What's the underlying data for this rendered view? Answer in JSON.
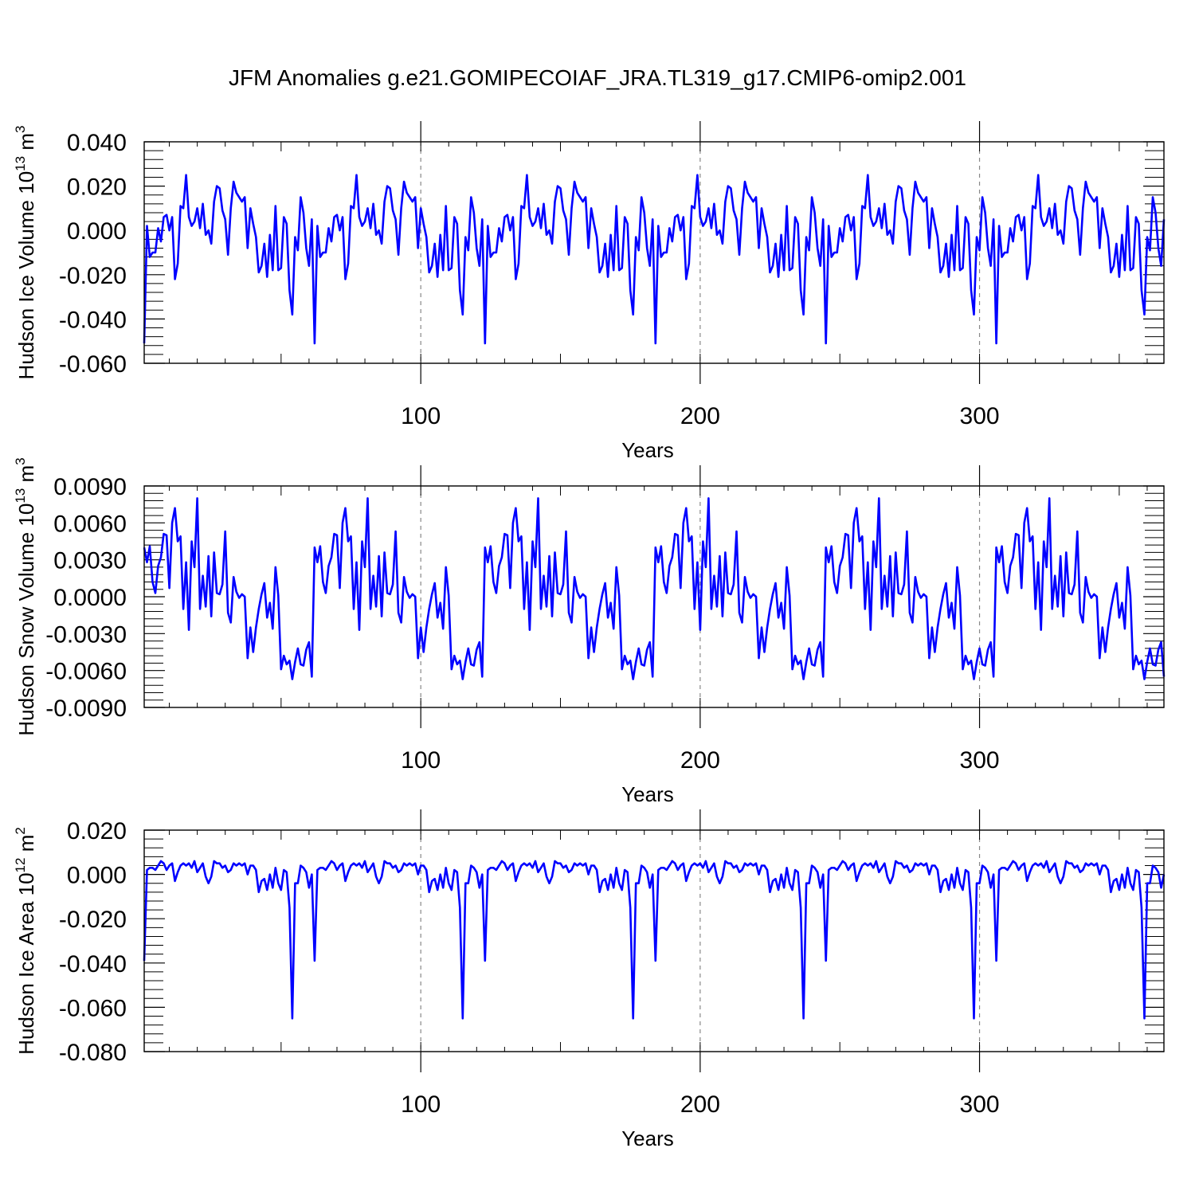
{
  "figure": {
    "title": "JFM Anomalies g.e21.GOMIPECOIAF_JRA.TL319_g17.CMIP6-omip2.001",
    "line_color": "#0000ff",
    "grid_color": "#888888",
    "axis_color": "#000000"
  },
  "chart_data": [
    {
      "type": "line",
      "title": "",
      "xlabel": "Years",
      "ylabel": "Hudson Ice Volume 10",
      "ylabel_exp": "13",
      "ylabel_unit": " m",
      "ylabel_unit_exp": "3",
      "xlim": [
        1,
        366
      ],
      "ylim": [
        -0.06,
        0.04
      ],
      "x_ticks": [
        100,
        200,
        300
      ],
      "x_tick_labels": [
        "100",
        "200",
        "300"
      ],
      "y_ticks": [
        -0.06,
        -0.04,
        -0.02,
        0.0,
        0.02,
        0.04
      ],
      "y_tick_labels": [
        "-0.060",
        "-0.040",
        "-0.020",
        "0.000",
        "0.020",
        "0.040"
      ],
      "grid": "vertical dashed at 100, 200, 300",
      "series": [
        {
          "period_start_x": 1,
          "period_length": 61,
          "last_x": 366,
          "values": [
            -0.051,
            0.002,
            -0.012,
            -0.01,
            -0.01,
            0.001,
            -0.005,
            0.006,
            0.007,
            0.0,
            0.006,
            -0.022,
            -0.015,
            0.011,
            0.01,
            0.025,
            0.006,
            0.002,
            0.004,
            0.01,
            0.001,
            0.012,
            -0.002,
            0.0,
            -0.006,
            0.013,
            0.02,
            0.019,
            0.009,
            0.005,
            -0.011,
            0.01,
            0.022,
            0.017,
            0.015,
            0.013,
            0.015,
            -0.008,
            0.01,
            0.003,
            -0.003,
            -0.019,
            -0.016,
            -0.006,
            -0.021,
            -0.002,
            -0.018,
            0.011,
            -0.018,
            -0.017,
            0.006,
            0.003,
            -0.027,
            -0.038,
            -0.003,
            -0.009,
            0.015,
            0.008,
            -0.008,
            -0.016,
            0.005
          ]
        }
      ]
    },
    {
      "type": "line",
      "title": "",
      "xlabel": "Years",
      "ylabel": "Hudson Snow Volume 10",
      "ylabel_exp": "13",
      "ylabel_unit": " m",
      "ylabel_unit_exp": "3",
      "xlim": [
        1,
        366
      ],
      "ylim": [
        -0.009,
        0.009
      ],
      "x_ticks": [
        100,
        200,
        300
      ],
      "x_tick_labels": [
        "100",
        "200",
        "300"
      ],
      "y_ticks": [
        -0.009,
        -0.006,
        -0.003,
        0.0,
        0.003,
        0.006,
        0.009
      ],
      "y_tick_labels": [
        "-0.0090",
        "-0.0060",
        "-0.0030",
        "0.0000",
        "0.0030",
        "0.0060",
        "0.0090"
      ],
      "grid": "vertical dashed at 100, 200, 300",
      "series": [
        {
          "period_start_x": 1,
          "period_length": 61,
          "last_x": 366,
          "values": [
            0.004,
            0.0028,
            0.0041,
            0.0012,
            0.0003,
            0.0025,
            0.0032,
            0.0051,
            0.005,
            0.0007,
            0.006,
            0.0072,
            0.0045,
            0.0049,
            -0.001,
            0.0028,
            -0.0027,
            0.0045,
            0.0024,
            0.008,
            -0.001,
            0.0017,
            -0.0008,
            0.0033,
            -0.0016,
            0.0036,
            0.0003,
            0.0002,
            0.001,
            0.0053,
            -0.0013,
            -0.0021,
            0.0016,
            0.0004,
            -0.0001,
            0.0002,
            0.0,
            -0.005,
            -0.0025,
            -0.0045,
            -0.0025,
            -0.001,
            0.0002,
            0.0011,
            -0.0017,
            -0.0005,
            -0.0026,
            0.0024,
            0.0001,
            -0.0059,
            -0.0048,
            -0.0055,
            -0.0052,
            -0.0067,
            -0.0053,
            -0.0042,
            -0.0055,
            -0.0056,
            -0.0043,
            -0.0037,
            -0.0065
          ]
        }
      ]
    },
    {
      "type": "line",
      "title": "",
      "xlabel": "Years",
      "ylabel": "Hudson Ice Area 10",
      "ylabel_exp": "12",
      "ylabel_unit": " m",
      "ylabel_unit_exp": "2",
      "xlim": [
        1,
        366
      ],
      "ylim": [
        -0.08,
        0.02
      ],
      "x_ticks": [
        100,
        200,
        300
      ],
      "x_tick_labels": [
        "100",
        "200",
        "300"
      ],
      "y_ticks": [
        -0.08,
        -0.06,
        -0.04,
        -0.02,
        0.0,
        0.02
      ],
      "y_tick_labels": [
        "-0.080",
        "-0.060",
        "-0.040",
        "-0.020",
        "0.000",
        "0.020"
      ],
      "grid": "vertical dashed at 100, 200, 300",
      "series": [
        {
          "period_start_x": 1,
          "period_length": 61,
          "last_x": 366,
          "values": [
            -0.039,
            0.002,
            0.003,
            0.003,
            0.002,
            0.004,
            0.006,
            0.005,
            0.002,
            0.004,
            0.005,
            -0.003,
            0.001,
            0.004,
            0.005,
            0.004,
            0.005,
            0.003,
            0.006,
            0.001,
            0.003,
            0.005,
            -0.001,
            -0.004,
            -0.001,
            0.006,
            0.005,
            0.005,
            0.003,
            0.004,
            0.001,
            0.002,
            0.005,
            0.004,
            0.005,
            0.004,
            0.005,
            0.0,
            0.004,
            0.004,
            0.002,
            -0.008,
            -0.003,
            -0.002,
            -0.007,
            0.0,
            -0.006,
            0.003,
            -0.004,
            -0.007,
            0.002,
            0.001,
            -0.015,
            -0.065,
            -0.004,
            -0.004,
            0.004,
            0.003,
            0.001,
            -0.006,
            0.0
          ]
        }
      ]
    }
  ]
}
